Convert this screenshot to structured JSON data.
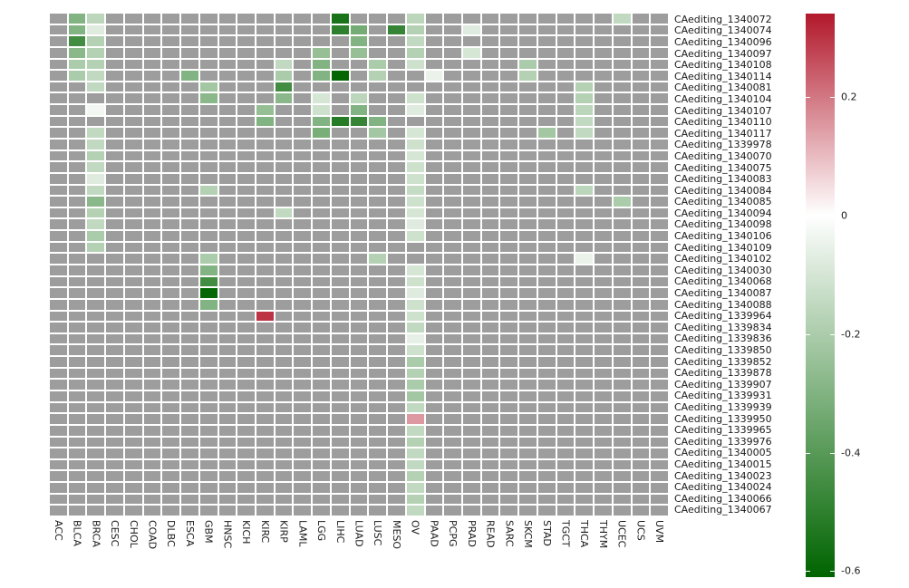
{
  "chart_data": {
    "type": "heatmap",
    "title": "",
    "xlabel": "",
    "ylabel": "",
    "na_color": "#9d9d9d",
    "grid_gap_color": "#ffffff",
    "colorscale": {
      "min": -0.61,
      "max": 0.34,
      "low": "#006400",
      "mid": "#ffffff",
      "high": "#b2182b"
    },
    "colorbar_ticks": [
      "0.2",
      "0",
      "-0.2",
      "-0.4",
      "-0.6"
    ],
    "colorbar_tick_values": [
      0.2,
      0,
      -0.2,
      -0.4,
      -0.6
    ],
    "legend_position": "right",
    "columns": [
      "ACC",
      "BLCA",
      "BRCA",
      "CESC",
      "CHOL",
      "COAD",
      "DLBC",
      "ESCA",
      "GBM",
      "HNSC",
      "KICH",
      "KIRC",
      "KIRP",
      "LAML",
      "LGG",
      "LIHC",
      "LUAD",
      "LUSC",
      "MESO",
      "OV",
      "PAAD",
      "PCPG",
      "PRAD",
      "READ",
      "SARC",
      "SKCM",
      "STAD",
      "TGCT",
      "THCA",
      "THYM",
      "UCEC",
      "UCS",
      "UVM"
    ],
    "rows": [
      "CAediting_1340072",
      "CAediting_1340074",
      "CAediting_1340096",
      "CAediting_1340097",
      "CAediting_1340108",
      "CAediting_1340114",
      "CAediting_1340081",
      "CAediting_1340104",
      "CAediting_1340107",
      "CAediting_1340110",
      "CAediting_1340117",
      "CAediting_1339978",
      "CAediting_1340070",
      "CAediting_1340075",
      "CAediting_1340083",
      "CAediting_1340084",
      "CAediting_1340085",
      "CAediting_1340094",
      "CAediting_1340098",
      "CAediting_1340106",
      "CAediting_1340109",
      "CAediting_1340102",
      "CAediting_1340030",
      "CAediting_1340068",
      "CAediting_1340087",
      "CAediting_1340088",
      "CAediting_1339964",
      "CAediting_1339834",
      "CAediting_1339836",
      "CAediting_1339850",
      "CAediting_1339852",
      "CAediting_1339878",
      "CAediting_1339907",
      "CAediting_1339931",
      "CAediting_1339939",
      "CAediting_1339950",
      "CAediting_1339965",
      "CAediting_1339976",
      "CAediting_1340005",
      "CAediting_1340015",
      "CAediting_1340023",
      "CAediting_1340024",
      "CAediting_1340066",
      "CAediting_1340067"
    ],
    "cells": [
      [
        "CAediting_1340072",
        "BLCA",
        -0.3
      ],
      [
        "CAediting_1340072",
        "BRCA",
        -0.16
      ],
      [
        "CAediting_1340072",
        "LIHC",
        -0.55
      ],
      [
        "CAediting_1340072",
        "OV",
        -0.16
      ],
      [
        "CAediting_1340072",
        "UCEC",
        -0.15
      ],
      [
        "CAediting_1340074",
        "BLCA",
        -0.3
      ],
      [
        "CAediting_1340074",
        "BRCA",
        -0.08
      ],
      [
        "CAediting_1340074",
        "LIHC",
        -0.5
      ],
      [
        "CAediting_1340074",
        "LUAD",
        -0.33
      ],
      [
        "CAediting_1340074",
        "MESO",
        -0.48
      ],
      [
        "CAediting_1340074",
        "OV",
        -0.18
      ],
      [
        "CAediting_1340074",
        "PRAD",
        -0.08
      ],
      [
        "CAediting_1340096",
        "BLCA",
        -0.45
      ],
      [
        "CAediting_1340096",
        "BRCA",
        -0.18
      ],
      [
        "CAediting_1340096",
        "LUAD",
        -0.3
      ],
      [
        "CAediting_1340096",
        "OV",
        -0.15
      ],
      [
        "CAediting_1340097",
        "BLCA",
        -0.28
      ],
      [
        "CAediting_1340097",
        "BRCA",
        -0.18
      ],
      [
        "CAediting_1340097",
        "LGG",
        -0.25
      ],
      [
        "CAediting_1340097",
        "LUAD",
        -0.25
      ],
      [
        "CAediting_1340097",
        "OV",
        -0.18
      ],
      [
        "CAediting_1340097",
        "PRAD",
        -0.1
      ],
      [
        "CAediting_1340108",
        "BLCA",
        -0.2
      ],
      [
        "CAediting_1340108",
        "BRCA",
        -0.18
      ],
      [
        "CAediting_1340108",
        "KIRP",
        -0.15
      ],
      [
        "CAediting_1340108",
        "LGG",
        -0.3
      ],
      [
        "CAediting_1340108",
        "LUSC",
        -0.2
      ],
      [
        "CAediting_1340108",
        "OV",
        -0.12
      ],
      [
        "CAediting_1340108",
        "SKCM",
        -0.2
      ],
      [
        "CAediting_1340114",
        "BLCA",
        -0.2
      ],
      [
        "CAediting_1340114",
        "BRCA",
        -0.15
      ],
      [
        "CAediting_1340114",
        "ESCA",
        -0.3
      ],
      [
        "CAediting_1340114",
        "KIRP",
        -0.2
      ],
      [
        "CAediting_1340114",
        "LGG",
        -0.3
      ],
      [
        "CAediting_1340114",
        "LIHC",
        -0.6
      ],
      [
        "CAediting_1340114",
        "LUSC",
        -0.18
      ],
      [
        "CAediting_1340114",
        "PAAD",
        -0.05
      ],
      [
        "CAediting_1340114",
        "SKCM",
        -0.18
      ],
      [
        "CAediting_1340081",
        "BRCA",
        -0.15
      ],
      [
        "CAediting_1340081",
        "GBM",
        -0.22
      ],
      [
        "CAediting_1340081",
        "KIRP",
        -0.45
      ],
      [
        "CAediting_1340081",
        "THCA",
        -0.18
      ],
      [
        "CAediting_1340104",
        "GBM",
        -0.28
      ],
      [
        "CAediting_1340104",
        "KIRP",
        -0.28
      ],
      [
        "CAediting_1340104",
        "LGG",
        -0.1
      ],
      [
        "CAediting_1340104",
        "LUAD",
        -0.16
      ],
      [
        "CAediting_1340104",
        "OV",
        -0.12
      ],
      [
        "CAediting_1340104",
        "THCA",
        -0.18
      ],
      [
        "CAediting_1340107",
        "BRCA",
        -0.03
      ],
      [
        "CAediting_1340107",
        "KIRC",
        -0.25
      ],
      [
        "CAediting_1340107",
        "LGG",
        -0.12
      ],
      [
        "CAediting_1340107",
        "LUAD",
        -0.3
      ],
      [
        "CAediting_1340107",
        "OV",
        -0.08
      ],
      [
        "CAediting_1340107",
        "THCA",
        -0.16
      ],
      [
        "CAediting_1340110",
        "KIRC",
        -0.3
      ],
      [
        "CAediting_1340110",
        "LGG",
        -0.3
      ],
      [
        "CAediting_1340110",
        "LIHC",
        -0.52
      ],
      [
        "CAediting_1340110",
        "LUAD",
        -0.48
      ],
      [
        "CAediting_1340110",
        "LUSC",
        -0.3
      ],
      [
        "CAediting_1340110",
        "THCA",
        -0.15
      ],
      [
        "CAediting_1340117",
        "BRCA",
        -0.15
      ],
      [
        "CAediting_1340117",
        "LGG",
        -0.32
      ],
      [
        "CAediting_1340117",
        "LUSC",
        -0.22
      ],
      [
        "CAediting_1340117",
        "OV",
        -0.1
      ],
      [
        "CAediting_1340117",
        "STAD",
        -0.22
      ],
      [
        "CAediting_1340117",
        "THCA",
        -0.15
      ],
      [
        "CAediting_1339978",
        "BRCA",
        -0.15
      ],
      [
        "CAediting_1339978",
        "OV",
        -0.12
      ],
      [
        "CAediting_1340070",
        "BRCA",
        -0.18
      ],
      [
        "CAediting_1340070",
        "OV",
        -0.1
      ],
      [
        "CAediting_1340075",
        "BRCA",
        -0.15
      ],
      [
        "CAediting_1340075",
        "OV",
        -0.12
      ],
      [
        "CAediting_1340083",
        "BRCA",
        -0.08
      ],
      [
        "CAediting_1340083",
        "OV",
        -0.12
      ],
      [
        "CAediting_1340084",
        "BRCA",
        -0.15
      ],
      [
        "CAediting_1340084",
        "GBM",
        -0.18
      ],
      [
        "CAediting_1340084",
        "OV",
        -0.14
      ],
      [
        "CAediting_1340084",
        "THCA",
        -0.16
      ],
      [
        "CAediting_1340085",
        "BRCA",
        -0.28
      ],
      [
        "CAediting_1340085",
        "OV",
        -0.12
      ],
      [
        "CAediting_1340085",
        "UCEC",
        -0.2
      ],
      [
        "CAediting_1340094",
        "BRCA",
        -0.18
      ],
      [
        "CAediting_1340094",
        "KIRP",
        -0.15
      ],
      [
        "CAediting_1340094",
        "OV",
        -0.1
      ],
      [
        "CAediting_1340098",
        "BRCA",
        -0.15
      ],
      [
        "CAediting_1340098",
        "OV",
        -0.08
      ],
      [
        "CAediting_1340106",
        "BRCA",
        -0.2
      ],
      [
        "CAediting_1340106",
        "OV",
        -0.12
      ],
      [
        "CAediting_1340109",
        "BRCA",
        -0.18
      ],
      [
        "CAediting_1340102",
        "GBM",
        -0.2
      ],
      [
        "CAediting_1340102",
        "LUSC",
        -0.18
      ],
      [
        "CAediting_1340102",
        "THCA",
        -0.05
      ],
      [
        "CAediting_1340030",
        "GBM",
        -0.3
      ],
      [
        "CAediting_1340030",
        "OV",
        -0.1
      ],
      [
        "CAediting_1340068",
        "GBM",
        -0.45
      ],
      [
        "CAediting_1340068",
        "OV",
        -0.12
      ],
      [
        "CAediting_1340087",
        "GBM",
        -0.6
      ],
      [
        "CAediting_1340087",
        "OV",
        -0.08
      ],
      [
        "CAediting_1340088",
        "GBM",
        -0.3
      ],
      [
        "CAediting_1340088",
        "OV",
        -0.12
      ],
      [
        "CAediting_1339964",
        "KIRC",
        0.3
      ],
      [
        "CAediting_1339964",
        "OV",
        -0.12
      ],
      [
        "CAediting_1339834",
        "OV",
        -0.15
      ],
      [
        "CAediting_1339836",
        "OV",
        -0.06
      ],
      [
        "CAediting_1339850",
        "OV",
        -0.12
      ],
      [
        "CAediting_1339852",
        "OV",
        -0.2
      ],
      [
        "CAediting_1339878",
        "OV",
        -0.18
      ],
      [
        "CAediting_1339907",
        "OV",
        -0.2
      ],
      [
        "CAediting_1339931",
        "OV",
        -0.22
      ],
      [
        "CAediting_1339939",
        "OV",
        -0.15
      ],
      [
        "CAediting_1339950",
        "OV",
        0.15
      ],
      [
        "CAediting_1339965",
        "OV",
        -0.15
      ],
      [
        "CAediting_1339976",
        "OV",
        -0.18
      ],
      [
        "CAediting_1340005",
        "OV",
        -0.15
      ],
      [
        "CAediting_1340015",
        "OV",
        -0.15
      ],
      [
        "CAediting_1340023",
        "OV",
        -0.18
      ],
      [
        "CAediting_1340024",
        "OV",
        -0.15
      ],
      [
        "CAediting_1340066",
        "OV",
        -0.18
      ],
      [
        "CAediting_1340067",
        "OV",
        -0.15
      ]
    ]
  }
}
